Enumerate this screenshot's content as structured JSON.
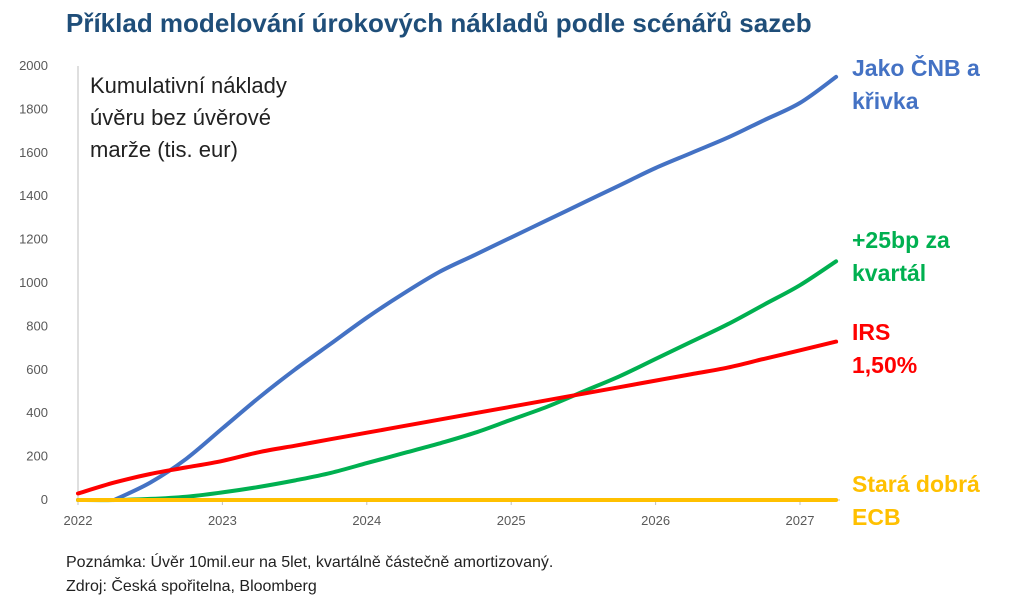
{
  "title": "Příklad modelování úrokových nákladů podle scénářů sazeb",
  "chart_data": {
    "type": "line",
    "annotation": [
      "Kumulativní náklady",
      "úvěru bez úvěrové",
      "marže (tis. eur)"
    ],
    "xlabel": "",
    "ylabel": "",
    "xlim": [
      2022,
      2027.25
    ],
    "ylim": [
      0,
      2000
    ],
    "x_ticks": [
      "2022",
      "2023",
      "2024",
      "2025",
      "2026",
      "2027"
    ],
    "y_ticks": [
      "0",
      "200",
      "400",
      "600",
      "800",
      "1000",
      "1200",
      "1400",
      "1600",
      "1800",
      "2000"
    ],
    "grid": false,
    "legend": "labels-right",
    "x": [
      2022.0,
      2022.25,
      2022.5,
      2022.75,
      2023.0,
      2023.25,
      2023.5,
      2023.75,
      2024.0,
      2024.25,
      2024.5,
      2024.75,
      2025.0,
      2025.25,
      2025.5,
      2025.75,
      2026.0,
      2026.25,
      2026.5,
      2026.75,
      2027.0,
      2027.25
    ],
    "series": [
      {
        "name": [
          "Jako ČNB a",
          "křivka"
        ],
        "color": "#4472c4",
        "values": [
          null,
          0,
          80,
          190,
          330,
          470,
          600,
          720,
          840,
          950,
          1050,
          1130,
          1210,
          1290,
          1370,
          1450,
          1530,
          1600,
          1670,
          1750,
          1830,
          1950
        ]
      },
      {
        "name": [
          "+25bp za",
          "kvartál"
        ],
        "color": "#00b050",
        "values": [
          0,
          0,
          5,
          15,
          35,
          60,
          90,
          125,
          170,
          215,
          260,
          310,
          370,
          430,
          500,
          570,
          650,
          730,
          810,
          900,
          990,
          1100
        ]
      },
      {
        "name": [
          "IRS",
          "1,50%"
        ],
        "color": "#ff0000",
        "values": [
          30,
          80,
          120,
          150,
          180,
          220,
          250,
          280,
          310,
          340,
          370,
          400,
          430,
          460,
          490,
          520,
          550,
          580,
          610,
          650,
          690,
          730
        ]
      },
      {
        "name": [
          "Stará dobrá",
          "ECB"
        ],
        "color": "#ffc000",
        "values": [
          0,
          0,
          0,
          0,
          0,
          0,
          0,
          0,
          0,
          0,
          0,
          0,
          0,
          0,
          0,
          0,
          0,
          0,
          0,
          0,
          0,
          0
        ]
      }
    ]
  },
  "footer": {
    "note": "Poznámka: Úvěr 10mil.eur na 5let, kvartálně částečně amortizovaný.",
    "source": "Zdroj: Česká spořitelna, Bloomberg"
  }
}
